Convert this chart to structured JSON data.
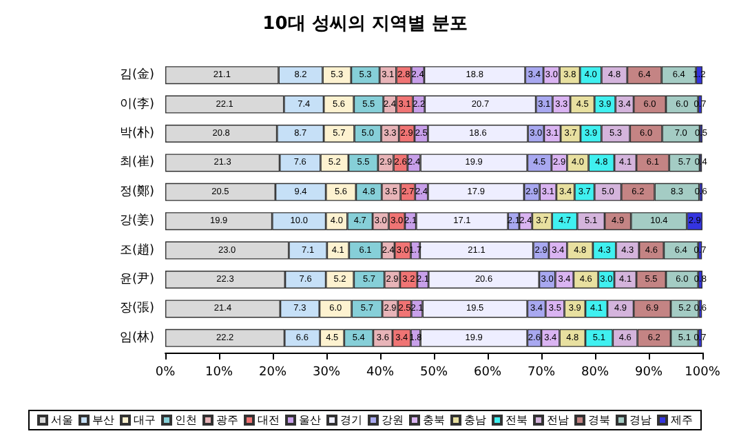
{
  "chart_data": {
    "type": "bar",
    "orientation": "horizontal",
    "stacked": true,
    "title": "10대 성씨의 지역별 분포",
    "categories": [
      "김(金)",
      "이(李)",
      "박(朴)",
      "최(崔)",
      "정(鄭)",
      "강(姜)",
      "조(趙)",
      "윤(尹)",
      "장(張)",
      "임(林)"
    ],
    "series": [
      {
        "name": "서울",
        "color": "#d9d9d9",
        "values": [
          21.1,
          22.1,
          20.8,
          21.3,
          20.5,
          19.9,
          23.0,
          22.3,
          21.4,
          22.2
        ],
        "value_labels": [
          "21.1",
          "22.1",
          "20.8",
          "21.3",
          "20.5",
          "19.9",
          "23.0",
          "22.3",
          "21.4",
          "22.2"
        ]
      },
      {
        "name": "부산",
        "color": "#c6e0f7",
        "values": [
          8.2,
          7.4,
          8.7,
          7.6,
          9.4,
          10.0,
          7.1,
          7.6,
          7.3,
          6.6
        ],
        "value_labels": [
          "8.2",
          "7.4",
          "8.7",
          "7.6",
          "9.4",
          "10.0",
          "7.1",
          "7.6",
          "7.3",
          "6.6"
        ]
      },
      {
        "name": "대구",
        "color": "#fdf2d0",
        "values": [
          5.3,
          5.6,
          5.7,
          5.2,
          5.6,
          4.0,
          4.1,
          5.2,
          6.0,
          4.5
        ],
        "value_labels": [
          "5.3",
          "5.6",
          "5.7",
          "5.2",
          "5.6",
          "4.0",
          "4.1",
          "5.2",
          "6.0",
          "4.5"
        ]
      },
      {
        "name": "인천",
        "color": "#86cfd8",
        "values": [
          5.3,
          5.5,
          5.0,
          5.5,
          4.8,
          4.7,
          6.1,
          5.7,
          5.7,
          5.4
        ],
        "value_labels": [
          "5.3",
          "5.5",
          "5.0",
          "5.5",
          "4.8",
          "4.7",
          "6.1",
          "5.7",
          "5.7",
          "5.4"
        ]
      },
      {
        "name": "광주",
        "color": "#e8b4b8",
        "values": [
          3.1,
          2.4,
          3.3,
          2.9,
          3.5,
          3.0,
          2.4,
          2.9,
          2.9,
          3.6
        ],
        "value_labels": [
          "3.1",
          "2.4",
          "3.3",
          "2.9",
          "3.5",
          "3.0",
          "2.4",
          "2.9",
          "2.9",
          "3.6"
        ]
      },
      {
        "name": "대전",
        "color": "#f07474",
        "values": [
          2.8,
          3.1,
          2.9,
          2.6,
          2.7,
          3.0,
          3.0,
          3.2,
          2.5,
          3.4
        ],
        "value_labels": [
          "2.8",
          "3.1",
          "2.9",
          "2.6",
          "2.7",
          "3.0",
          "3.0",
          "3.2",
          "2.5",
          "3.4"
        ]
      },
      {
        "name": "울산",
        "color": "#c8a0ea",
        "values": [
          2.4,
          2.2,
          2.5,
          2.4,
          2.4,
          2.1,
          1.7,
          2.1,
          2.1,
          1.8
        ],
        "value_labels": [
          "2.4",
          "2.2",
          "2.5",
          "2.4",
          "2.4",
          "2.1",
          "1.7",
          "2.1",
          "2.1",
          "1.8"
        ]
      },
      {
        "name": "경기",
        "color": "#eeeeff",
        "values": [
          18.8,
          20.7,
          18.6,
          19.9,
          17.9,
          17.1,
          21.1,
          20.6,
          19.5,
          19.9
        ],
        "value_labels": [
          "18.8",
          "20.7",
          "18.6",
          "19.9",
          "17.9",
          "17.1",
          "21.1",
          "20.6",
          "19.5",
          "19.9"
        ]
      },
      {
        "name": "강원",
        "color": "#a8a8f0",
        "values": [
          3.4,
          3.1,
          3.0,
          4.5,
          2.9,
          2.1,
          2.9,
          3.0,
          3.4,
          2.6
        ],
        "value_labels": [
          "3.4",
          "3.1",
          "3.0",
          "4.5",
          "2.9",
          "2.1",
          "2.9",
          "3.0",
          "3.4",
          "2.6"
        ]
      },
      {
        "name": "충북",
        "color": "#dab4f2",
        "values": [
          3.0,
          3.3,
          3.1,
          2.9,
          3.1,
          2.4,
          3.4,
          3.4,
          3.5,
          3.4
        ],
        "value_labels": [
          "3.0",
          "3.3",
          "3.1",
          "2.9",
          "3.1",
          "2.4",
          "3.4",
          "3.4",
          "3.5",
          "3.4"
        ]
      },
      {
        "name": "충남",
        "color": "#e8e0a0",
        "values": [
          3.8,
          4.5,
          3.7,
          4.0,
          3.4,
          3.7,
          4.8,
          4.6,
          3.9,
          4.8
        ],
        "value_labels": [
          "3.8",
          "4.5",
          "3.7",
          "4.0",
          "3.4",
          "3.7",
          "4.8",
          "4.6",
          "3.9",
          "4.8"
        ]
      },
      {
        "name": "전북",
        "color": "#40f0f0",
        "values": [
          4.0,
          3.9,
          3.9,
          4.8,
          3.7,
          4.7,
          4.3,
          3.0,
          4.1,
          5.1
        ],
        "value_labels": [
          "4.0",
          "3.9",
          "3.9",
          "4.8",
          "3.7",
          "4.7",
          "4.3",
          "3.0",
          "4.1",
          "5.1"
        ]
      },
      {
        "name": "전남",
        "color": "#d4b4dc",
        "values": [
          4.8,
          3.4,
          5.3,
          4.1,
          5.0,
          5.1,
          4.3,
          4.1,
          4.9,
          4.6
        ],
        "value_labels": [
          "4.8",
          "3.4",
          "5.3",
          "4.1",
          "5.0",
          "5.1",
          "4.3",
          "4.1",
          "4.9",
          "4.6"
        ]
      },
      {
        "name": "경북",
        "color": "#c48484",
        "values": [
          6.4,
          6.0,
          6.0,
          6.1,
          6.2,
          4.9,
          4.6,
          5.5,
          6.9,
          6.2
        ],
        "value_labels": [
          "6.4",
          "6.0",
          "6.0",
          "6.1",
          "6.2",
          "4.9",
          "4.6",
          "5.5",
          "6.9",
          "6.2"
        ]
      },
      {
        "name": "경남",
        "color": "#a4ccc4",
        "values": [
          6.4,
          6.0,
          7.0,
          5.7,
          8.3,
          10.4,
          6.4,
          6.0,
          5.2,
          5.1
        ],
        "value_labels": [
          "6.4",
          "6.0",
          "7.0",
          "5.7",
          "8.3",
          "10.4",
          "6.4",
          "6.0",
          "5.2",
          "5.1"
        ]
      },
      {
        "name": "제주",
        "color": "#3434e0",
        "values": [
          1.2,
          0.7,
          0.5,
          0.4,
          0.6,
          2.9,
          0.7,
          0.8,
          0.6,
          0.7
        ],
        "value_labels": [
          "1.2",
          "0.7",
          "0.5",
          "0.4",
          "0.6",
          "2.9",
          "0.7",
          "0.8",
          "0.6",
          "0.7"
        ]
      }
    ],
    "xlim": [
      0,
      100
    ],
    "xticks": [
      {
        "value": 0,
        "label": "0%"
      },
      {
        "value": 10,
        "label": "10%"
      },
      {
        "value": 20,
        "label": "20%"
      },
      {
        "value": 30,
        "label": "30%"
      },
      {
        "value": 40,
        "label": "40%"
      },
      {
        "value": 50,
        "label": "50%"
      },
      {
        "value": 60,
        "label": "60%"
      },
      {
        "value": 70,
        "label": "70%"
      },
      {
        "value": 80,
        "label": "80%"
      },
      {
        "value": 90,
        "label": "90%"
      },
      {
        "value": 100,
        "label": "100%"
      }
    ],
    "legend": "bottom",
    "grid": false
  }
}
